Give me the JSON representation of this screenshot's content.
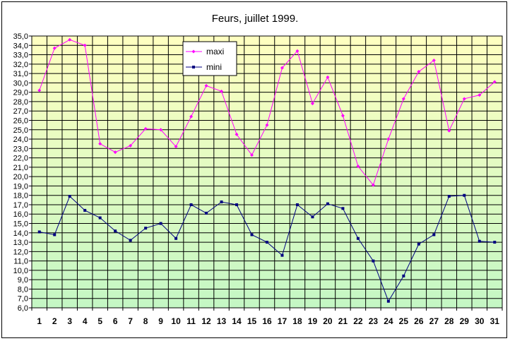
{
  "chart_data": {
    "type": "line",
    "title": "Feurs, juillet 1999.",
    "xlabel": "",
    "ylabel": "",
    "x": [
      1,
      2,
      3,
      4,
      5,
      6,
      7,
      8,
      9,
      10,
      11,
      12,
      13,
      14,
      15,
      16,
      17,
      18,
      19,
      20,
      21,
      22,
      23,
      24,
      25,
      26,
      27,
      28,
      29,
      30,
      31
    ],
    "ylim": [
      6.0,
      35.0
    ],
    "ytick_step": 1.0,
    "grid": true,
    "legend_position": "top-center",
    "series": [
      {
        "name": "maxi",
        "color": "#ff00ff",
        "marker": "diamond",
        "values": [
          29.2,
          33.7,
          34.6,
          34.0,
          23.5,
          22.6,
          23.3,
          25.1,
          25.0,
          23.2,
          26.4,
          29.7,
          29.1,
          24.5,
          22.3,
          25.5,
          31.6,
          33.4,
          27.8,
          30.6,
          26.5,
          21.1,
          19.1,
          24.0,
          28.3,
          31.2,
          32.4,
          24.9,
          28.3,
          28.7,
          30.1
        ]
      },
      {
        "name": "mini",
        "color": "#000080",
        "marker": "square",
        "values": [
          14.1,
          13.8,
          17.9,
          16.4,
          15.6,
          14.2,
          13.2,
          14.5,
          15.0,
          13.4,
          17.0,
          16.1,
          17.3,
          17.0,
          13.8,
          13.0,
          11.6,
          17.0,
          15.7,
          17.1,
          16.6,
          13.4,
          11.0,
          6.7,
          9.4,
          12.8,
          13.8,
          17.9,
          18.0,
          13.1,
          13.0
        ]
      }
    ],
    "colors": {
      "plot_top": "#ffffc0",
      "plot_bottom": "#c4f7c4",
      "grid": "#000000"
    }
  }
}
